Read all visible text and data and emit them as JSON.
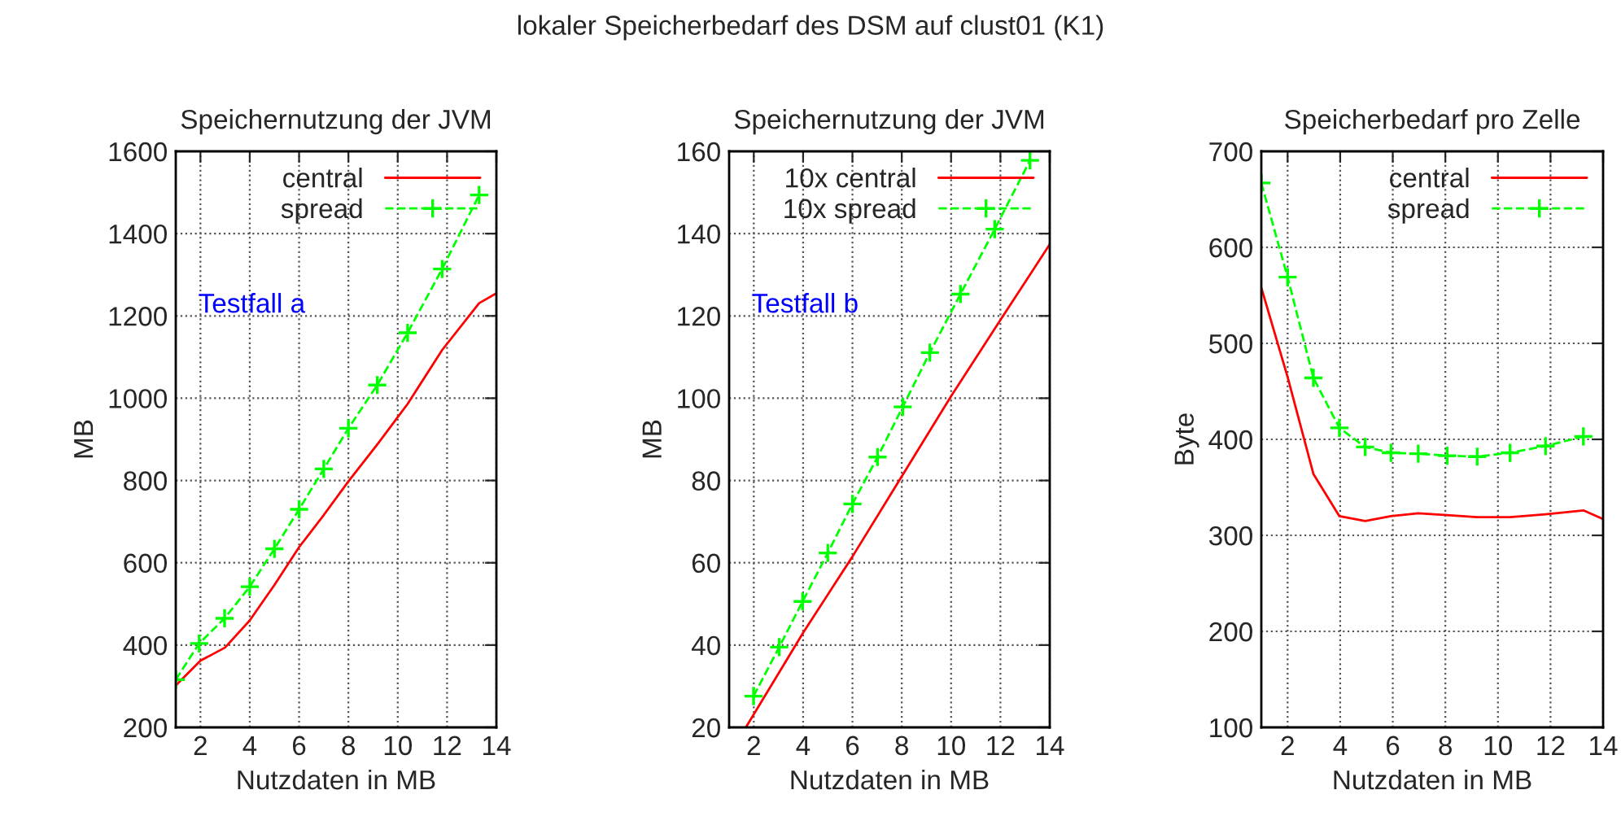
{
  "chart_data": [
    {
      "type": "line",
      "title": "Speichernutzung der JVM",
      "xlabel": "Nutzdaten in MB",
      "ylabel": "MB",
      "xlim": [
        1,
        14
      ],
      "xticks": [
        2,
        4,
        6,
        8,
        10,
        12,
        14
      ],
      "ylim": [
        200,
        1600
      ],
      "yticks": [
        200,
        400,
        600,
        800,
        1000,
        1200,
        1400,
        1600
      ],
      "grid": true,
      "legend": "top right",
      "annotations": [
        "Testfall a",
        "lokaler Speicherbedarf des DSM auf clust01 (K1)"
      ],
      "series": [
        {
          "name": "central",
          "color": "#ff0000",
          "line_style": "solid",
          "marker": "none",
          "x": [
            1,
            2,
            3,
            4,
            5,
            6,
            7,
            8,
            9.2,
            10.4,
            11.8,
            13.3,
            14
          ],
          "values": [
            302,
            362,
            394,
            460,
            546,
            638,
            716,
            798,
            890,
            986,
            1117,
            1231,
            1255
          ]
        },
        {
          "name": "spread",
          "color": "#00ff00",
          "line_style": "dashed",
          "marker": "cross",
          "x": [
            1,
            1.95,
            2.98,
            4,
            5,
            6,
            7,
            8,
            9.17,
            10.4,
            11.8,
            13.3
          ],
          "values": [
            316,
            404,
            465,
            542,
            634,
            730,
            828,
            927,
            1032,
            1159,
            1314,
            1494
          ]
        }
      ]
    },
    {
      "type": "line",
      "title": "Speichernutzung der JVM",
      "xlabel": "Nutzdaten in MB",
      "ylabel": "MB",
      "xlim": [
        1,
        14
      ],
      "xticks": [
        2,
        4,
        6,
        8,
        10,
        12,
        14
      ],
      "ylim": [
        20,
        160
      ],
      "yticks": [
        20,
        40,
        60,
        80,
        100,
        120,
        140,
        160
      ],
      "grid": true,
      "legend": "top right",
      "annotations": [
        "Testfall b"
      ],
      "series": [
        {
          "name": "10x central",
          "color": "#ff0000",
          "line_style": "solid",
          "marker": "none",
          "x": [
            1.68,
            4,
            6,
            8,
            10,
            12,
            14
          ],
          "values": [
            20,
            43,
            61.5,
            81,
            100.5,
            119,
            137.4
          ]
        },
        {
          "name": "10x spread",
          "color": "#00ff00",
          "line_style": "dashed",
          "marker": "cross",
          "x": [
            1.99,
            3.03,
            3.98,
            5,
            6,
            7.02,
            8.04,
            9.14,
            10.38,
            11.77,
            13.2
          ],
          "values": [
            27.6,
            39.5,
            50.6,
            62.4,
            74.3,
            85.7,
            97.9,
            111.1,
            125.3,
            141.1,
            157.8
          ]
        }
      ]
    },
    {
      "type": "line",
      "title": "Speicherbedarf pro Zelle",
      "xlabel": "Nutzdaten in MB",
      "ylabel": "Byte",
      "xlim": [
        1,
        14
      ],
      "xticks": [
        2,
        4,
        6,
        8,
        10,
        12,
        14
      ],
      "ylim": [
        100,
        700
      ],
      "yticks": [
        100,
        200,
        300,
        400,
        500,
        600,
        700
      ],
      "grid": true,
      "legend": "top right",
      "series": [
        {
          "name": "central",
          "color": "#ff0000",
          "line_style": "solid",
          "marker": "none",
          "x": [
            1,
            2,
            2.98,
            3.97,
            4.95,
            5.93,
            6.97,
            8.07,
            9.21,
            10.46,
            11.81,
            13.25,
            14
          ],
          "values": [
            558,
            465,
            364,
            320,
            315,
            320,
            323,
            321,
            319,
            319,
            322,
            326,
            317
          ]
        },
        {
          "name": "spread",
          "color": "#00ff00",
          "line_style": "dashed",
          "marker": "cross",
          "x": [
            1,
            2,
            2.98,
            3.97,
            4.95,
            5.93,
            6.97,
            8.07,
            9.21,
            10.46,
            11.81,
            13.25
          ],
          "values": [
            667,
            569,
            464,
            412,
            392,
            386,
            385,
            383,
            382,
            386,
            393,
            403
          ]
        }
      ]
    }
  ]
}
